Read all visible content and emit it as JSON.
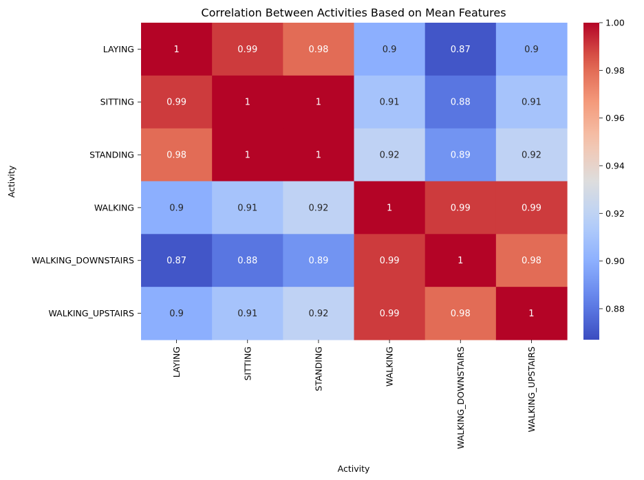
{
  "chart_data": {
    "type": "heatmap",
    "title": "Correlation Between Activities Based on Mean Features",
    "xlabel": "Activity",
    "ylabel": "Activity",
    "rows": [
      "LAYING",
      "SITTING",
      "STANDING",
      "WALKING",
      "WALKING_DOWNSTAIRS",
      "WALKING_UPSTAIRS"
    ],
    "columns": [
      "LAYING",
      "SITTING",
      "STANDING",
      "WALKING",
      "WALKING_DOWNSTAIRS",
      "WALKING_UPSTAIRS"
    ],
    "values": [
      [
        1.0,
        0.99,
        0.98,
        0.9,
        0.87,
        0.9
      ],
      [
        0.99,
        1.0,
        1.0,
        0.91,
        0.88,
        0.91
      ],
      [
        0.98,
        1.0,
        1.0,
        0.92,
        0.89,
        0.92
      ],
      [
        0.9,
        0.91,
        0.92,
        1.0,
        0.99,
        0.99
      ],
      [
        0.87,
        0.88,
        0.89,
        0.99,
        1.0,
        0.98
      ],
      [
        0.9,
        0.91,
        0.92,
        0.99,
        0.98,
        1.0
      ]
    ],
    "annotations": [
      [
        "1",
        "0.99",
        "0.98",
        "0.9",
        "0.87",
        "0.9"
      ],
      [
        "0.99",
        "1",
        "1",
        "0.91",
        "0.88",
        "0.91"
      ],
      [
        "0.98",
        "1",
        "1",
        "0.92",
        "0.89",
        "0.92"
      ],
      [
        "0.9",
        "0.91",
        "0.92",
        "1",
        "0.99",
        "0.99"
      ],
      [
        "0.87",
        "0.88",
        "0.89",
        "0.99",
        "1",
        "0.98"
      ],
      [
        "0.9",
        "0.91",
        "0.92",
        "0.99",
        "0.98",
        "1"
      ]
    ],
    "colormap": "coolwarm",
    "colorbar": {
      "range": [
        0.867,
        1.0
      ],
      "ticks": [
        0.88,
        0.9,
        0.92,
        0.94,
        0.96,
        0.98,
        1.0
      ],
      "tick_labels": [
        "0.88",
        "0.90",
        "0.92",
        "0.94",
        "0.96",
        "0.98",
        "1.00"
      ]
    }
  }
}
